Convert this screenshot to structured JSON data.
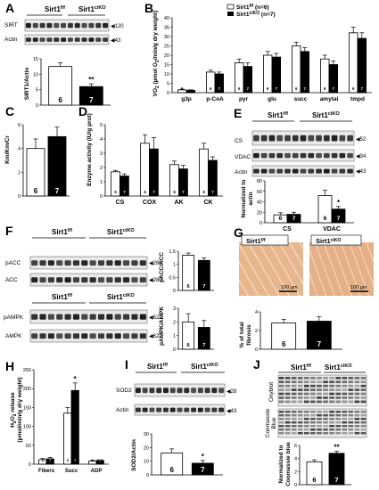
{
  "panels": {
    "A": {
      "letter": "A",
      "genotypes": [
        "Sirt1",
        "f/f",
        "Sirt1",
        "ciKO"
      ],
      "blot_rows": [
        "SIRT",
        "Actin"
      ],
      "mw": [
        "120",
        "43"
      ],
      "chart": {
        "ylabel": "SIRT1/Actin",
        "n": [
          "6",
          "7"
        ],
        "sig": "**"
      }
    },
    "B": {
      "letter": "B",
      "legend": [
        "Sirt1",
        "f/f",
        " (n=6)",
        "Sirt1",
        "ciKO",
        " (n=7)"
      ],
      "ylabel_parts": [
        "VO",
        "2",
        " (µmol O",
        "2",
        "/min/g dry weight)"
      ]
    },
    "C": {
      "letter": "C",
      "ylabel": "Km/Km/Cr",
      "n": [
        "6",
        "7"
      ]
    },
    "D": {
      "letter": "D",
      "ylabel": "Enzyme activity (IU/g prot)",
      "n": [
        "6",
        "7",
        "6",
        "7",
        "6",
        "7",
        "6",
        "7"
      ]
    },
    "E": {
      "letter": "E",
      "genotypes": [
        "Sirt1",
        "f/f",
        "Sirt1",
        "ciKO"
      ],
      "blot_rows": [
        "CS",
        "VDAC",
        "Actin"
      ],
      "mw": [
        "52",
        "34",
        "43"
      ],
      "chart": {
        "ylabel": "Normalized to actin",
        "n": [
          "6",
          "7",
          "6",
          "7"
        ],
        "sig": "*"
      }
    },
    "F": {
      "letter": "F",
      "genotypes": [
        "Sirt1",
        "f/f",
        "Sirt1",
        "ciKO"
      ],
      "top_rows": [
        "pACC",
        "ACC"
      ],
      "top_mw": [
        "280",
        "280"
      ],
      "bottom_rows": [
        "pAMPK",
        "AMPK"
      ],
      "bottom_mw": [
        "62",
        "62"
      ],
      "chart1": {
        "ylabel": "pACC/ACC",
        "n": [
          "6",
          "7"
        ]
      },
      "chart2": {
        "ylabel": "pAMPK/AMPK",
        "n": [
          "6",
          "7"
        ]
      }
    },
    "G": {
      "letter": "G",
      "genotypes": [
        "Sirt1",
        "f/f",
        "Sirt1",
        "ciKO"
      ],
      "scale": [
        "100 µm",
        "100 µm"
      ],
      "chart": {
        "ylabel": "% of total fibrosis",
        "n": [
          "6",
          "7"
        ]
      }
    },
    "H": {
      "letter": "H",
      "ylabel_parts": [
        "H",
        "2",
        "O",
        "2",
        " release"
      ],
      "ylabel2": "(pmol/min/g dry weight)",
      "n": [
        "6",
        "7",
        "6",
        "7",
        "6",
        "7"
      ],
      "sig": "*"
    },
    "I": {
      "letter": "I",
      "genotypes": [
        "Sirt1",
        "f/f",
        "Sirt1",
        "ciKO"
      ],
      "blot_rows": [
        "SOD2",
        "Actin"
      ],
      "mw": [
        "28",
        "43"
      ],
      "chart": {
        "ylabel": "SOD2/Actin",
        "n": [
          "6",
          "7"
        ],
        "sig": "*"
      }
    },
    "J": {
      "letter": "J",
      "genotypes": [
        "Sirt1",
        "f/f",
        "Sirt1",
        "ciKO"
      ],
      "side_labels": [
        "Oxyblot",
        "Coomassie",
        "Blue"
      ],
      "chart": {
        "ylabel": "Normalized to Coomassie blue",
        "n": [
          "6",
          "7"
        ],
        "sig": "**"
      }
    }
  },
  "chart_data": [
    {
      "panel": "A",
      "type": "bar",
      "categories": [
        "f/f",
        "ciKO"
      ],
      "values": [
        12.5,
        6
      ],
      "errors": [
        1.2,
        0.9
      ],
      "ylim": [
        0,
        15
      ],
      "yticks": [
        "0",
        "5",
        "10",
        "15"
      ]
    },
    {
      "panel": "B",
      "type": "bar",
      "categories": [
        "g3p",
        "p-CoA",
        "pyr",
        "glu",
        "succ",
        "amytal",
        "tmpd"
      ],
      "series": [
        {
          "name": "f/f",
          "values": [
            1.5,
            11,
            16,
            20,
            25,
            18,
            32
          ],
          "errors": [
            0.4,
            1,
            2,
            2,
            2,
            2,
            3
          ]
        },
        {
          "name": "ciKO",
          "values": [
            1.2,
            10,
            14,
            19,
            22,
            15,
            29
          ],
          "errors": [
            0.4,
            1,
            2,
            2,
            2,
            2,
            3
          ]
        }
      ],
      "ylim": [
        0,
        40
      ],
      "yticks": [
        "0",
        "5",
        "10",
        "15",
        "20",
        "25",
        "30",
        "35",
        "40"
      ]
    },
    {
      "panel": "C",
      "type": "bar",
      "categories": [
        "f/f",
        "ciKO"
      ],
      "values": [
        4,
        5
      ],
      "errors": [
        0.8,
        0.8
      ],
      "ylim": [
        0,
        6
      ],
      "yticks": [
        "0",
        "2",
        "4",
        "6"
      ]
    },
    {
      "panel": "D",
      "type": "bar",
      "categories": [
        "CS",
        "COX",
        "AK",
        "CK"
      ],
      "series": [
        {
          "name": "f/f",
          "values": [
            1.7,
            3.7,
            2.2,
            3.3
          ],
          "errors": [
            0.1,
            0.6,
            0.25,
            0.4
          ]
        },
        {
          "name": "ciKO",
          "values": [
            1.4,
            3.3,
            1.9,
            2.5
          ],
          "errors": [
            0.15,
            0.8,
            0.25,
            0.25
          ]
        }
      ],
      "ylim": [
        0,
        5
      ],
      "yticks": [
        "0",
        "1",
        "2",
        "3",
        "4",
        "5"
      ]
    },
    {
      "panel": "E",
      "type": "bar",
      "categories": [
        "CS",
        "VDAC"
      ],
      "series": [
        {
          "name": "f/f",
          "values": [
            15,
            52
          ],
          "errors": [
            4,
            10
          ]
        },
        {
          "name": "ciKO",
          "values": [
            16,
            26
          ],
          "errors": [
            4,
            5
          ]
        }
      ],
      "ylim": [
        0,
        80
      ],
      "yticks": [
        "0",
        "20",
        "40",
        "60",
        "80"
      ]
    },
    {
      "panel": "F1",
      "type": "bar",
      "categories": [
        "f/f",
        "ciKO"
      ],
      "values": [
        1.35,
        1.15
      ],
      "errors": [
        0.08,
        0.1
      ],
      "ylim": [
        0,
        1.5
      ],
      "yticks": [
        "0",
        "0.5",
        "1",
        "1.5"
      ]
    },
    {
      "panel": "F2",
      "type": "bar",
      "categories": [
        "f/f",
        "ciKO"
      ],
      "values": [
        2,
        1.6
      ],
      "errors": [
        0.6,
        0.5
      ],
      "ylim": [
        0,
        3
      ],
      "yticks": [
        "0",
        "1",
        "2",
        "3"
      ]
    },
    {
      "panel": "G",
      "type": "bar",
      "categories": [
        "f/f",
        "ciKO"
      ],
      "values": [
        2.8,
        3
      ],
      "errors": [
        0.4,
        0.5
      ],
      "ylim": [
        0,
        4
      ],
      "yticks": [
        "0",
        "2",
        "4"
      ]
    },
    {
      "panel": "H",
      "type": "bar",
      "categories": [
        "Fibers",
        "Succ",
        "ADP"
      ],
      "series": [
        {
          "name": "f/f",
          "values": [
            12,
            135,
            8
          ],
          "errors": [
            3,
            15,
            2
          ]
        },
        {
          "name": "ciKO",
          "values": [
            14,
            195,
            10
          ],
          "errors": [
            4,
            20,
            2
          ]
        }
      ],
      "ylim": [
        0,
        250
      ],
      "yticks": [
        "0",
        "50",
        "100",
        "150",
        "200",
        "250"
      ]
    },
    {
      "panel": "I",
      "type": "bar",
      "categories": [
        "f/f",
        "ciKO"
      ],
      "values": [
        16,
        8.5
      ],
      "errors": [
        3,
        2
      ],
      "ylim": [
        0,
        30
      ],
      "yticks": [
        "0",
        "10",
        "20",
        "30"
      ]
    },
    {
      "panel": "J",
      "type": "bar",
      "categories": [
        "f/f",
        "ciKO"
      ],
      "values": [
        3.5,
        4.8
      ],
      "errors": [
        0.3,
        0.3
      ],
      "ylim": [
        0,
        6
      ],
      "yticks": [
        "0",
        "2",
        "4",
        "6"
      ]
    }
  ]
}
